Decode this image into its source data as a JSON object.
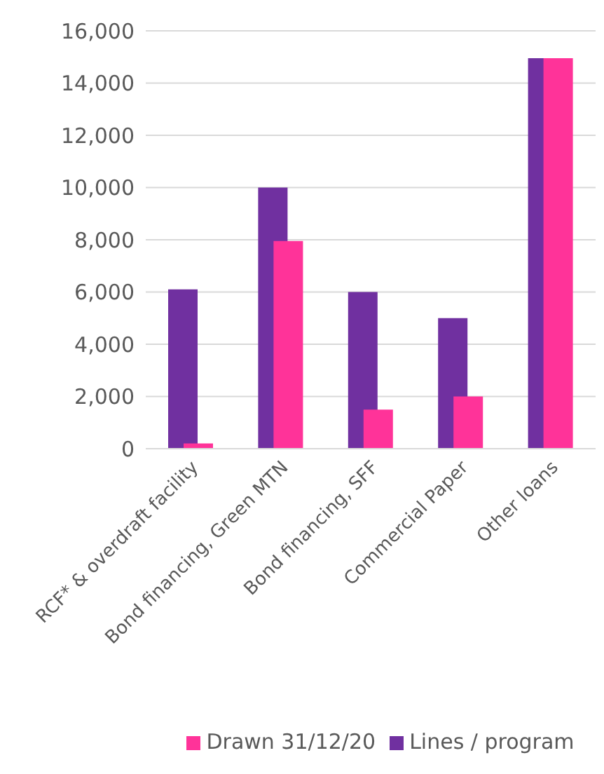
{
  "chart_data": {
    "type": "bar",
    "categories": [
      "RCF* & overdraft facility",
      "Bond financing, Green MTN",
      "Bond financing, SFF",
      "Commercial Paper",
      "Other loans"
    ],
    "series": [
      {
        "name": "Lines / program",
        "color": "#7030a0",
        "values": [
          6100,
          10000,
          6000,
          5000,
          14950
        ]
      },
      {
        "name": "Drawn 31/12/20",
        "color": "#ff3399",
        "values": [
          200,
          7950,
          1500,
          2000,
          14950
        ]
      }
    ],
    "ylim": [
      0,
      16000
    ],
    "yticks": [
      {
        "value": 0,
        "label": "0"
      },
      {
        "value": 2000,
        "label": "2,000"
      },
      {
        "value": 4000,
        "label": "4,000"
      },
      {
        "value": 6000,
        "label": "6,000"
      },
      {
        "value": 8000,
        "label": "8,000"
      },
      {
        "value": 10000,
        "label": "10,000"
      },
      {
        "value": 12000,
        "label": "12,000"
      },
      {
        "value": 14000,
        "label": "14,000"
      },
      {
        "value": 16000,
        "label": "16,000"
      }
    ],
    "grid": "y",
    "legend": "bottom"
  }
}
